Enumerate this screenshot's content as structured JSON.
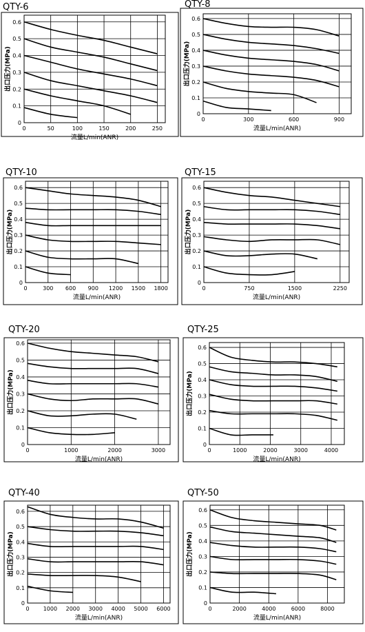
{
  "chart_data": [
    {
      "type": "line",
      "title": "QTY-6",
      "x_label": "流量L/min(ANR)",
      "y_label": "出口压力(MPa)",
      "color": "#000000",
      "grid": true,
      "xlim": [
        0,
        265
      ],
      "ylim": [
        0,
        0.64
      ],
      "xticks": [
        0,
        50,
        100,
        150,
        200,
        250
      ],
      "yticks": [
        0,
        0.1,
        0.2,
        0.3,
        0.4,
        0.5,
        0.6
      ],
      "x": [
        0,
        50,
        100,
        150,
        200,
        250
      ],
      "series": [
        {
          "values": [
            0.6,
            0.555,
            0.52,
            0.49,
            0.45,
            0.41
          ]
        },
        {
          "values": [
            0.5,
            0.45,
            0.42,
            0.39,
            0.35,
            0.31
          ]
        },
        {
          "values": [
            0.4,
            0.36,
            0.32,
            0.29,
            0.26,
            0.22
          ]
        },
        {
          "values": [
            0.3,
            0.25,
            0.22,
            0.19,
            0.16,
            0.12
          ]
        },
        {
          "values": [
            0.2,
            0.16,
            0.13,
            0.1,
            0.05,
            null
          ]
        },
        {
          "values": [
            0.09,
            0.05,
            0.03,
            null,
            null,
            null
          ]
        }
      ]
    },
    {
      "type": "line",
      "title": "QTY-8",
      "x_label": "流量L/min(ANR)",
      "y_label": "出口压力(MPa)",
      "color": "#000000",
      "grid": true,
      "xlim": [
        0,
        980
      ],
      "ylim": [
        0,
        0.63
      ],
      "xticks": [
        0,
        300,
        600,
        900
      ],
      "yticks": [
        0,
        0.1,
        0.2,
        0.3,
        0.4,
        0.5,
        0.6
      ],
      "x": [
        0,
        150,
        300,
        450,
        600,
        750,
        900
      ],
      "series": [
        {
          "values": [
            0.6,
            0.57,
            0.55,
            0.545,
            0.545,
            0.53,
            0.49
          ]
        },
        {
          "values": [
            0.5,
            0.47,
            0.45,
            0.44,
            0.43,
            0.41,
            0.38
          ]
        },
        {
          "values": [
            0.4,
            0.37,
            0.35,
            0.34,
            0.33,
            0.31,
            0.27
          ]
        },
        {
          "values": [
            0.3,
            0.27,
            0.25,
            0.24,
            0.23,
            0.21,
            0.17
          ]
        },
        {
          "values": [
            0.2,
            0.16,
            0.14,
            0.13,
            0.12,
            0.07,
            null
          ]
        },
        {
          "values": [
            0.08,
            0.04,
            0.03,
            0.02,
            null,
            null,
            null
          ]
        }
      ]
    },
    {
      "type": "line",
      "title": "QTY-10",
      "x_label": "流量L/min(ANR)",
      "y_label": "出口压力(MPa)",
      "color": "#000000",
      "grid": true,
      "xlim": [
        0,
        1895
      ],
      "ylim": [
        0,
        0.64
      ],
      "xticks": [
        0,
        300,
        600,
        900,
        1200,
        1500,
        1800
      ],
      "yticks": [
        0,
        0.1,
        0.2,
        0.3,
        0.4,
        0.5,
        0.6
      ],
      "x": [
        0,
        300,
        600,
        900,
        1200,
        1500,
        1800
      ],
      "series": [
        {
          "values": [
            0.6,
            0.58,
            0.56,
            0.55,
            0.54,
            0.52,
            0.48
          ]
        },
        {
          "values": [
            0.47,
            0.46,
            0.46,
            0.46,
            0.46,
            0.45,
            0.43
          ]
        },
        {
          "values": [
            0.38,
            0.36,
            0.36,
            0.36,
            0.36,
            0.36,
            0.36
          ]
        },
        {
          "values": [
            0.3,
            0.27,
            0.26,
            0.26,
            0.26,
            0.25,
            0.24
          ]
        },
        {
          "values": [
            0.2,
            0.16,
            0.15,
            0.15,
            0.15,
            0.12,
            null
          ]
        },
        {
          "values": [
            0.1,
            0.06,
            0.05,
            null,
            null,
            null,
            null
          ]
        }
      ]
    },
    {
      "type": "line",
      "title": "QTY-15",
      "x_label": "流量L/min(ANR)",
      "y_label": "出口压力(MPa)",
      "color": "#000000",
      "grid": true,
      "xlim": [
        0,
        2400
      ],
      "ylim": [
        0,
        0.64
      ],
      "xticks": [
        0,
        750,
        1500,
        2250
      ],
      "yticks": [
        0,
        0.1,
        0.2,
        0.3,
        0.4,
        0.5,
        0.6
      ],
      "x": [
        0,
        375,
        750,
        1125,
        1500,
        1875,
        2250
      ],
      "series": [
        {
          "values": [
            0.6,
            0.57,
            0.55,
            0.54,
            0.52,
            0.5,
            0.48
          ]
        },
        {
          "values": [
            0.48,
            0.46,
            0.46,
            0.46,
            0.46,
            0.45,
            0.43
          ]
        },
        {
          "values": [
            0.38,
            0.37,
            0.37,
            0.37,
            0.37,
            0.36,
            0.34
          ]
        },
        {
          "values": [
            0.29,
            0.27,
            0.26,
            0.27,
            0.27,
            0.27,
            0.24
          ]
        },
        {
          "values": [
            0.2,
            0.17,
            0.17,
            0.18,
            0.18,
            0.15,
            null
          ]
        },
        {
          "values": [
            0.1,
            0.06,
            0.05,
            0.05,
            0.07,
            null,
            null
          ]
        }
      ]
    },
    {
      "type": "line",
      "title": "QTY-20",
      "x_label": "流量L/min(ANR)",
      "y_label": "出口压力(MPa)",
      "color": "#000000",
      "grid": true,
      "xlim": [
        0,
        3270
      ],
      "ylim": [
        0,
        0.62
      ],
      "xticks": [
        0,
        1000,
        2000,
        3000
      ],
      "yticks": [
        0,
        0.1,
        0.2,
        0.3,
        0.4,
        0.5,
        0.6
      ],
      "x": [
        0,
        500,
        1000,
        1500,
        2000,
        2500,
        3000
      ],
      "series": [
        {
          "values": [
            0.6,
            0.57,
            0.55,
            0.54,
            0.53,
            0.52,
            0.49
          ]
        },
        {
          "values": [
            0.48,
            0.46,
            0.45,
            0.45,
            0.45,
            0.45,
            0.42
          ]
        },
        {
          "values": [
            0.38,
            0.36,
            0.36,
            0.36,
            0.36,
            0.36,
            0.34
          ]
        },
        {
          "values": [
            0.3,
            0.27,
            0.26,
            0.27,
            0.27,
            0.27,
            0.24
          ]
        },
        {
          "values": [
            0.2,
            0.17,
            0.17,
            0.18,
            0.18,
            0.15,
            null
          ]
        },
        {
          "values": [
            0.1,
            0.07,
            0.06,
            0.06,
            0.07,
            null,
            null
          ]
        }
      ]
    },
    {
      "type": "line",
      "title": "QTY-25",
      "x_label": "流量L/min(ANR)",
      "y_label": "出口压力(MPa)",
      "color": "#000000",
      "grid": true,
      "xlim": [
        0,
        4430
      ],
      "ylim": [
        0,
        0.63
      ],
      "xticks": [
        0,
        1000,
        2000,
        3000,
        4000
      ],
      "yticks": [
        0,
        0.1,
        0.2,
        0.3,
        0.4,
        0.5,
        0.6
      ],
      "x": [
        0,
        700,
        1400,
        2100,
        2800,
        3500,
        4200
      ],
      "series": [
        {
          "values": [
            0.6,
            0.54,
            0.52,
            0.51,
            0.51,
            0.5,
            0.48
          ]
        },
        {
          "values": [
            0.48,
            0.45,
            0.44,
            0.43,
            0.43,
            0.42,
            0.39
          ]
        },
        {
          "values": [
            0.4,
            0.37,
            0.36,
            0.36,
            0.36,
            0.35,
            0.33
          ]
        },
        {
          "values": [
            0.31,
            0.28,
            0.27,
            0.27,
            0.27,
            0.27,
            0.25
          ]
        },
        {
          "values": [
            0.21,
            0.19,
            0.19,
            0.19,
            0.19,
            0.18,
            0.15
          ]
        },
        {
          "values": [
            0.1,
            0.06,
            0.06,
            0.06,
            null,
            null,
            null
          ]
        }
      ]
    },
    {
      "type": "line",
      "title": "QTY-40",
      "x_label": "流量L/min(ANR)",
      "y_label": "出口压力(MPa)",
      "color": "#000000",
      "grid": true,
      "xlim": [
        0,
        6290
      ],
      "ylim": [
        0,
        0.64
      ],
      "xticks": [
        0,
        1000,
        2000,
        3000,
        4000,
        5000,
        6000
      ],
      "yticks": [
        0,
        0.1,
        0.2,
        0.3,
        0.4,
        0.5,
        0.6
      ],
      "x": [
        0,
        1000,
        2000,
        3000,
        4000,
        5000,
        6000
      ],
      "series": [
        {
          "values": [
            0.63,
            0.58,
            0.56,
            0.55,
            0.55,
            0.53,
            0.49
          ]
        },
        {
          "values": [
            0.5,
            0.48,
            0.47,
            0.47,
            0.47,
            0.46,
            0.44
          ]
        },
        {
          "values": [
            0.39,
            0.37,
            0.37,
            0.37,
            0.37,
            0.37,
            0.35
          ]
        },
        {
          "values": [
            0.29,
            0.27,
            0.27,
            0.27,
            0.27,
            0.27,
            0.25
          ]
        },
        {
          "values": [
            0.19,
            0.18,
            0.18,
            0.18,
            0.17,
            0.14,
            null
          ]
        },
        {
          "values": [
            0.11,
            0.08,
            0.07,
            null,
            null,
            null,
            null
          ]
        }
      ]
    },
    {
      "type": "line",
      "title": "QTY-50",
      "x_label": "流量L/min(ANR)",
      "y_label": "出口压力(MPa)",
      "color": "#000000",
      "grid": true,
      "xlim": [
        0,
        9150
      ],
      "ylim": [
        0,
        0.63
      ],
      "xticks": [
        0,
        2000,
        4000,
        6000,
        8000
      ],
      "yticks": [
        0,
        0.1,
        0.2,
        0.3,
        0.4,
        0.5,
        0.6
      ],
      "x": [
        0,
        1500,
        3000,
        4500,
        6000,
        7500,
        8600
      ],
      "series": [
        {
          "values": [
            0.6,
            0.55,
            0.53,
            0.52,
            0.51,
            0.5,
            0.47
          ]
        },
        {
          "values": [
            0.49,
            0.46,
            0.45,
            0.44,
            0.43,
            0.42,
            0.39
          ]
        },
        {
          "values": [
            0.39,
            0.37,
            0.36,
            0.36,
            0.36,
            0.35,
            0.33
          ]
        },
        {
          "values": [
            0.3,
            0.28,
            0.28,
            0.28,
            0.28,
            0.27,
            0.25
          ]
        },
        {
          "values": [
            0.2,
            0.19,
            0.19,
            0.19,
            0.19,
            0.18,
            0.15
          ]
        },
        {
          "values": [
            0.1,
            0.07,
            0.07,
            0.06,
            null,
            null,
            null
          ]
        }
      ]
    }
  ]
}
